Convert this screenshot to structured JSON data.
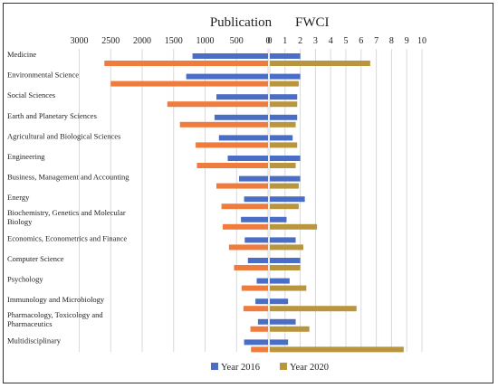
{
  "chart_data": {
    "type": "bar",
    "orientation": "horizontal",
    "left_panel_title": "Publication",
    "right_panel_title": "FWCI",
    "left_ticks": [
      "3000",
      "2500",
      "2000",
      "1500",
      "1000",
      "500",
      "0"
    ],
    "right_ticks": [
      "0",
      "1",
      "2",
      "3",
      "4",
      "5",
      "6",
      "7",
      "8",
      "9",
      "10"
    ],
    "left_range": [
      0,
      3000
    ],
    "right_range": [
      0,
      10
    ],
    "grid": "vertical",
    "legend_position": "bottom",
    "categories": [
      "Medicine",
      "Environmental Science",
      "Social Sciences",
      "Earth and Planetary Sciences",
      "Agricultural and Biological Sciences",
      "Engineering",
      "Business, Management and Accounting",
      "Energy",
      "Biochemistry, Genetics and Molecular Biology",
      "Economics, Econometrics and Finance",
      "Computer Science",
      "Psychology",
      "Immunology and Microbiology",
      "Pharmacology, Toxicology and Pharmaceutics",
      "Multidisciplinary"
    ],
    "category_lines": [
      [
        "Medicine"
      ],
      [
        "Environmental Science"
      ],
      [
        "Social Sciences"
      ],
      [
        "Earth and Planetary Sciences"
      ],
      [
        "Agricultural and Biological Sciences"
      ],
      [
        "Engineering"
      ],
      [
        "Business, Management and Accounting"
      ],
      [
        "Energy"
      ],
      [
        "Biochemistry, Genetics and Molecular",
        "Biology"
      ],
      [
        "Economics, Econometrics and Finance"
      ],
      [
        "Computer Science"
      ],
      [
        "Psychology"
      ],
      [
        "Immunology and Microbiology"
      ],
      [
        "Pharmacology, Toxicology and",
        "Pharmaceutics"
      ],
      [
        "Multidisciplinary"
      ]
    ],
    "publication": {
      "series": [
        {
          "name": "Year 2016",
          "values": [
            1200,
            1300,
            820,
            850,
            780,
            640,
            460,
            380,
            430,
            370,
            320,
            180,
            200,
            160,
            380
          ]
        },
        {
          "name": "Year 2020",
          "values": [
            2600,
            2500,
            1600,
            1400,
            1150,
            1130,
            820,
            740,
            720,
            620,
            540,
            420,
            390,
            280,
            270
          ]
        }
      ]
    },
    "fwci": {
      "series": [
        {
          "name": "Year 2016",
          "values": [
            2.0,
            2.0,
            1.8,
            1.8,
            1.5,
            2.0,
            2.0,
            2.3,
            1.1,
            1.7,
            2.0,
            1.3,
            1.2,
            1.7,
            1.2
          ]
        },
        {
          "name": "Year 2020",
          "values": [
            6.6,
            1.9,
            1.8,
            1.7,
            1.8,
            1.7,
            1.9,
            1.9,
            3.1,
            2.2,
            2.0,
            2.4,
            5.7,
            2.6,
            8.8
          ]
        }
      ]
    },
    "legend": [
      "Year 2016",
      "Year 2020"
    ],
    "colors": {
      "pub2016": "#4a6dc5",
      "pub2020": "#ef7b3c",
      "fwci2016": "#4a6dc5",
      "fwci2020": "#b9963e",
      "grid": "#d9d9d9",
      "text": "#222222"
    }
  }
}
